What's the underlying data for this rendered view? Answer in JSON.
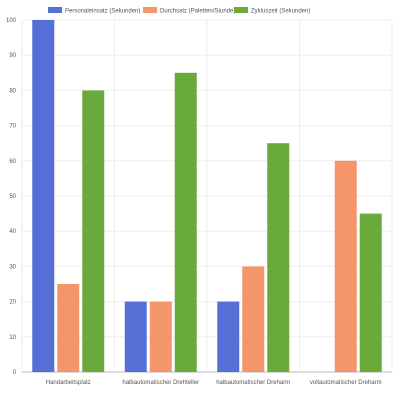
{
  "chart_data": {
    "type": "bar",
    "categories": [
      "Handarbeitsplatz",
      "halbautomatischer Drehteller",
      "halbautomatischer Dreharm",
      "vollautomatischer Dreharm"
    ],
    "series": [
      {
        "name": "Personaleinsatz (Sekunden)",
        "color": "#5470d6",
        "values": [
          100,
          20,
          20,
          null
        ]
      },
      {
        "name": "Durchsatz (Paletten/Stunde)",
        "color": "#f4956a",
        "values": [
          25,
          20,
          30,
          60
        ]
      },
      {
        "name": "Zykluszeit (Sekunden)",
        "color": "#6aaa3a",
        "values": [
          80,
          85,
          65,
          45
        ]
      }
    ],
    "yticks": [
      "0",
      "10",
      "20",
      "30",
      "40",
      "50",
      "60",
      "70",
      "80",
      "90",
      "100"
    ],
    "ylim": [
      0,
      100
    ],
    "grid": true,
    "legend": "top-center"
  }
}
